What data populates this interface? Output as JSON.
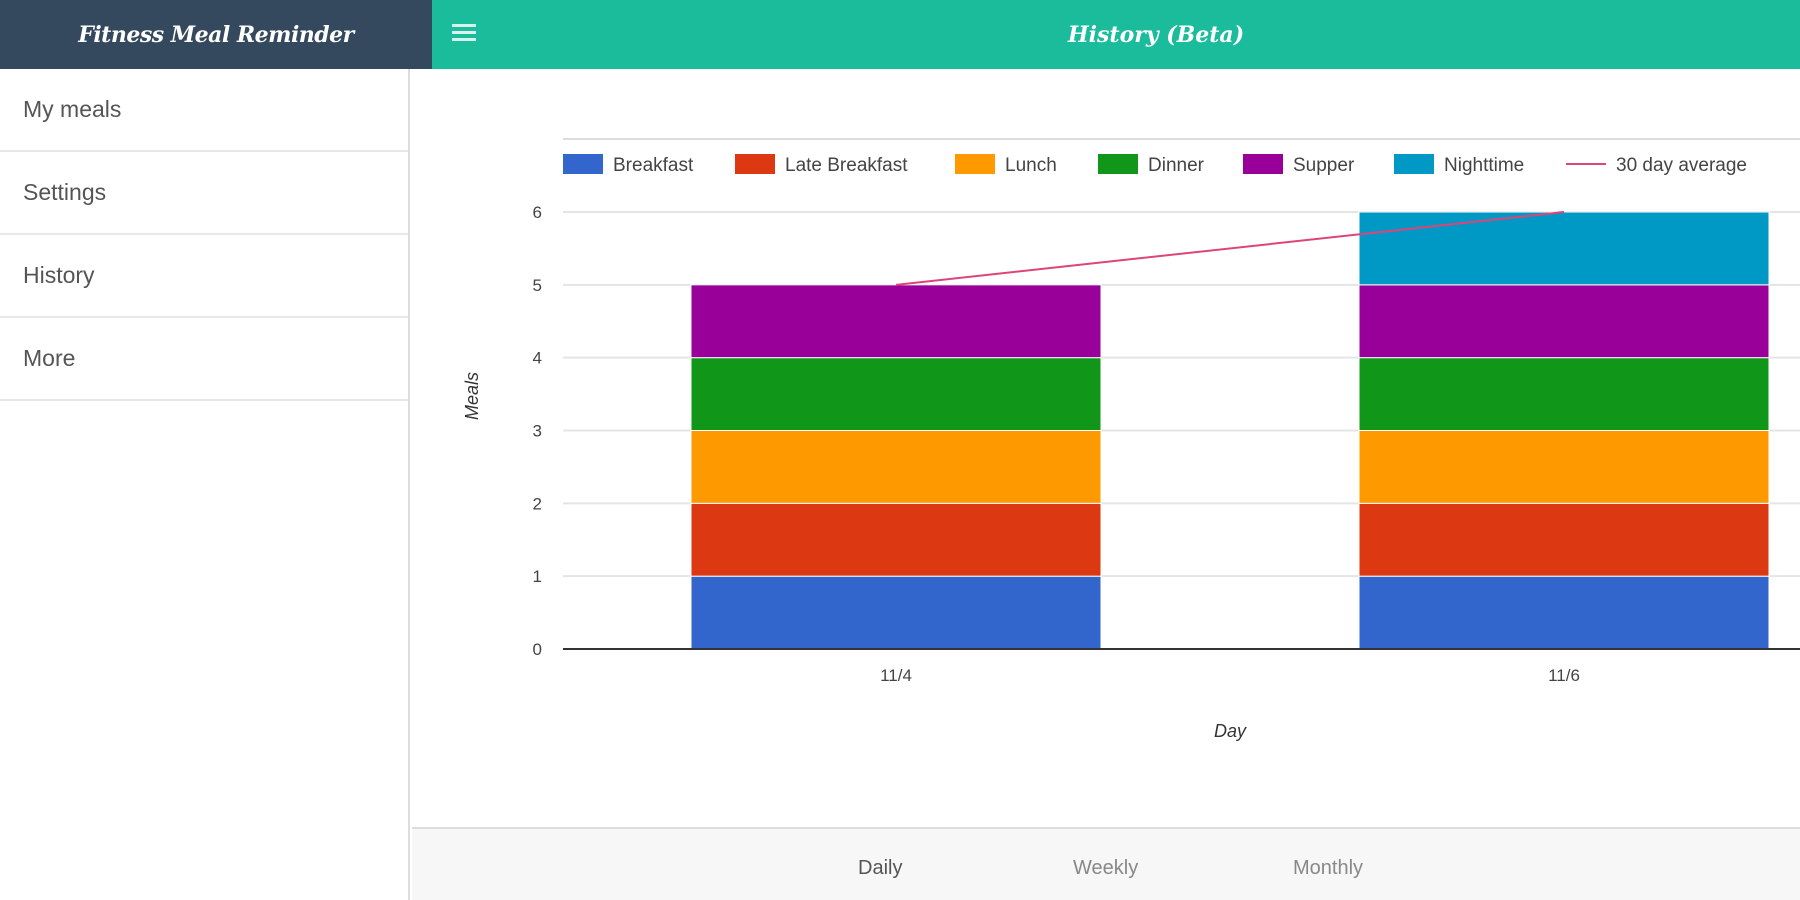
{
  "app": {
    "title": "Fitness Meal Reminder",
    "page_title": "History (Beta)"
  },
  "sidebar": {
    "items": [
      {
        "label": "My meals"
      },
      {
        "label": "Settings"
      },
      {
        "label": "History"
      },
      {
        "label": "More"
      }
    ]
  },
  "tabs": [
    {
      "label": "Daily",
      "active": true
    },
    {
      "label": "Weekly"
    },
    {
      "label": "Monthly"
    }
  ],
  "chart_data": {
    "type": "bar",
    "stacked": true,
    "categories": [
      "11/4",
      "11/6"
    ],
    "xlabel": "Day",
    "ylabel": "Meals",
    "ylim": [
      0,
      6
    ],
    "yticks": [
      0,
      1,
      2,
      3,
      4,
      5,
      6
    ],
    "legend": "top",
    "series": [
      {
        "name": "Breakfast",
        "color": "#3366cc",
        "values": [
          1,
          1
        ]
      },
      {
        "name": "Late Breakfast",
        "color": "#dc3912",
        "values": [
          1,
          1
        ]
      },
      {
        "name": "Lunch",
        "color": "#ff9900",
        "values": [
          1,
          1
        ]
      },
      {
        "name": "Dinner",
        "color": "#109618",
        "values": [
          1,
          1
        ]
      },
      {
        "name": "Supper",
        "color": "#990099",
        "values": [
          1,
          1
        ]
      },
      {
        "name": "Nighttime",
        "color": "#0099c6",
        "values": [
          0,
          1
        ]
      }
    ],
    "line": {
      "name": "30 day average",
      "color": "#dd4477",
      "values": [
        5,
        6
      ]
    }
  }
}
